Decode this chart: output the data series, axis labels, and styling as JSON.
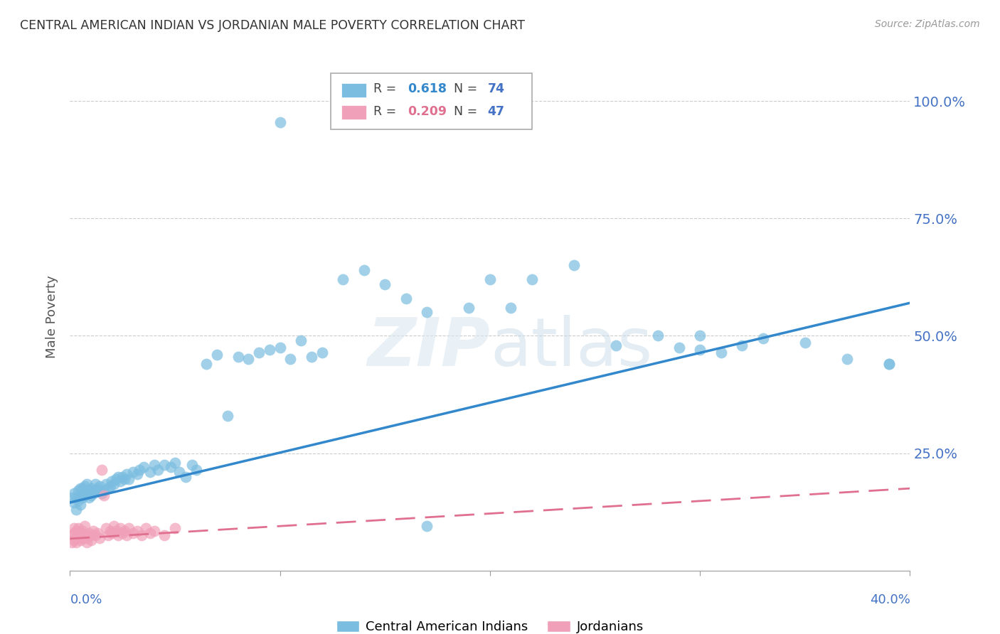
{
  "title": "CENTRAL AMERICAN INDIAN VS JORDANIAN MALE POVERTY CORRELATION CHART",
  "source": "Source: ZipAtlas.com",
  "ylabel": "Male Poverty",
  "ytick_labels": [
    "100.0%",
    "75.0%",
    "50.0%",
    "25.0%"
  ],
  "ytick_values": [
    1.0,
    0.75,
    0.5,
    0.25
  ],
  "xlim": [
    0.0,
    0.4
  ],
  "ylim": [
    0.0,
    1.08
  ],
  "watermark": "ZIPatlas",
  "legend_label1": "Central American Indians",
  "legend_label2": "Jordanians",
  "blue_color": "#7bbde0",
  "pink_color": "#f0a0b8",
  "blue_line_color": "#3388cc",
  "pink_line_color": "#e07090",
  "title_color": "#333333",
  "axis_label_color": "#4472c4",
  "grid_color": "#cccccc",
  "scatter_blue": [
    [
      0.001,
      0.155
    ],
    [
      0.002,
      0.145
    ],
    [
      0.002,
      0.165
    ],
    [
      0.003,
      0.13
    ],
    [
      0.003,
      0.155
    ],
    [
      0.004,
      0.15
    ],
    [
      0.004,
      0.17
    ],
    [
      0.005,
      0.14
    ],
    [
      0.005,
      0.16
    ],
    [
      0.005,
      0.175
    ],
    [
      0.006,
      0.155
    ],
    [
      0.006,
      0.175
    ],
    [
      0.007,
      0.16
    ],
    [
      0.007,
      0.18
    ],
    [
      0.008,
      0.165
    ],
    [
      0.008,
      0.185
    ],
    [
      0.009,
      0.17
    ],
    [
      0.009,
      0.155
    ],
    [
      0.01,
      0.175
    ],
    [
      0.01,
      0.16
    ],
    [
      0.011,
      0.165
    ],
    [
      0.012,
      0.17
    ],
    [
      0.012,
      0.185
    ],
    [
      0.013,
      0.175
    ],
    [
      0.014,
      0.18
    ],
    [
      0.015,
      0.165
    ],
    [
      0.016,
      0.17
    ],
    [
      0.017,
      0.185
    ],
    [
      0.018,
      0.175
    ],
    [
      0.019,
      0.18
    ],
    [
      0.02,
      0.19
    ],
    [
      0.021,
      0.185
    ],
    [
      0.022,
      0.195
    ],
    [
      0.023,
      0.2
    ],
    [
      0.024,
      0.19
    ],
    [
      0.025,
      0.2
    ],
    [
      0.026,
      0.195
    ],
    [
      0.027,
      0.205
    ],
    [
      0.028,
      0.195
    ],
    [
      0.03,
      0.21
    ],
    [
      0.032,
      0.205
    ],
    [
      0.033,
      0.215
    ],
    [
      0.035,
      0.22
    ],
    [
      0.038,
      0.21
    ],
    [
      0.04,
      0.225
    ],
    [
      0.042,
      0.215
    ],
    [
      0.045,
      0.225
    ],
    [
      0.048,
      0.22
    ],
    [
      0.05,
      0.23
    ],
    [
      0.052,
      0.21
    ],
    [
      0.055,
      0.2
    ],
    [
      0.058,
      0.225
    ],
    [
      0.06,
      0.215
    ],
    [
      0.065,
      0.44
    ],
    [
      0.07,
      0.46
    ],
    [
      0.075,
      0.33
    ],
    [
      0.08,
      0.455
    ],
    [
      0.085,
      0.45
    ],
    [
      0.09,
      0.465
    ],
    [
      0.095,
      0.47
    ],
    [
      0.1,
      0.475
    ],
    [
      0.105,
      0.45
    ],
    [
      0.11,
      0.49
    ],
    [
      0.115,
      0.455
    ],
    [
      0.12,
      0.465
    ],
    [
      0.13,
      0.62
    ],
    [
      0.14,
      0.64
    ],
    [
      0.15,
      0.61
    ],
    [
      0.16,
      0.58
    ],
    [
      0.17,
      0.55
    ],
    [
      0.19,
      0.56
    ],
    [
      0.2,
      0.62
    ],
    [
      0.21,
      0.56
    ],
    [
      0.22,
      0.62
    ],
    [
      0.24,
      0.65
    ],
    [
      0.1,
      0.955
    ],
    [
      0.17,
      0.095
    ],
    [
      0.26,
      0.48
    ],
    [
      0.28,
      0.5
    ],
    [
      0.29,
      0.475
    ],
    [
      0.3,
      0.5
    ],
    [
      0.31,
      0.465
    ],
    [
      0.32,
      0.48
    ],
    [
      0.33,
      0.495
    ],
    [
      0.35,
      0.485
    ],
    [
      0.37,
      0.45
    ],
    [
      0.39,
      0.44
    ],
    [
      0.3,
      0.47
    ],
    [
      0.39,
      0.44
    ]
  ],
  "scatter_pink": [
    [
      0.001,
      0.075
    ],
    [
      0.001,
      0.06
    ],
    [
      0.002,
      0.08
    ],
    [
      0.002,
      0.065
    ],
    [
      0.002,
      0.09
    ],
    [
      0.003,
      0.07
    ],
    [
      0.003,
      0.085
    ],
    [
      0.003,
      0.06
    ],
    [
      0.004,
      0.075
    ],
    [
      0.004,
      0.09
    ],
    [
      0.005,
      0.065
    ],
    [
      0.005,
      0.08
    ],
    [
      0.006,
      0.07
    ],
    [
      0.006,
      0.085
    ],
    [
      0.007,
      0.075
    ],
    [
      0.007,
      0.095
    ],
    [
      0.008,
      0.07
    ],
    [
      0.008,
      0.06
    ],
    [
      0.009,
      0.08
    ],
    [
      0.01,
      0.075
    ],
    [
      0.01,
      0.065
    ],
    [
      0.011,
      0.085
    ],
    [
      0.012,
      0.075
    ],
    [
      0.013,
      0.08
    ],
    [
      0.014,
      0.07
    ],
    [
      0.015,
      0.215
    ],
    [
      0.016,
      0.16
    ],
    [
      0.017,
      0.09
    ],
    [
      0.018,
      0.075
    ],
    [
      0.019,
      0.085
    ],
    [
      0.02,
      0.08
    ],
    [
      0.021,
      0.095
    ],
    [
      0.022,
      0.085
    ],
    [
      0.023,
      0.075
    ],
    [
      0.024,
      0.09
    ],
    [
      0.025,
      0.08
    ],
    [
      0.026,
      0.085
    ],
    [
      0.027,
      0.075
    ],
    [
      0.028,
      0.09
    ],
    [
      0.03,
      0.08
    ],
    [
      0.032,
      0.085
    ],
    [
      0.034,
      0.075
    ],
    [
      0.036,
      0.09
    ],
    [
      0.038,
      0.08
    ],
    [
      0.04,
      0.085
    ],
    [
      0.045,
      0.075
    ],
    [
      0.05,
      0.09
    ]
  ],
  "blue_trend": [
    0.0,
    0.4,
    0.145,
    0.57
  ],
  "pink_trend": [
    0.0,
    0.4,
    0.068,
    0.175
  ]
}
